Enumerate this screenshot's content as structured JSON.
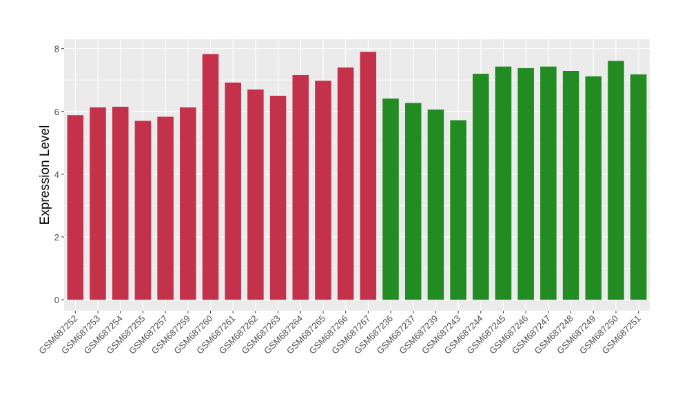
{
  "chart_data": {
    "type": "bar",
    "title": "",
    "xlabel": "",
    "ylabel": "Expression Level",
    "ylim": [
      -0.35,
      8.3
    ],
    "yticks": [
      0,
      2,
      4,
      6,
      8
    ],
    "grid": true,
    "legend": "none",
    "categories": [
      "GSM687252",
      "GSM687253",
      "GSM687254",
      "GSM687255",
      "GSM687257",
      "GSM687259",
      "GSM687260",
      "GSM687261",
      "GSM687262",
      "GSM687263",
      "GSM687264",
      "GSM687265",
      "GSM687266",
      "GSM687267",
      "GSM687236",
      "GSM687237",
      "GSM687239",
      "GSM687243",
      "GSM687244",
      "GSM687245",
      "GSM687246",
      "GSM687247",
      "GSM687248",
      "GSM687249",
      "GSM687250",
      "GSM687251"
    ],
    "values": [
      5.88,
      6.13,
      6.15,
      5.7,
      5.83,
      6.13,
      7.83,
      6.92,
      6.7,
      6.5,
      7.16,
      6.98,
      7.4,
      7.9,
      6.41,
      6.27,
      6.06,
      5.72,
      7.2,
      7.43,
      7.38,
      7.43,
      7.29,
      7.12,
      7.61,
      7.18
    ],
    "bar_colors": [
      "#c4314b",
      "#c4314b",
      "#c4314b",
      "#c4314b",
      "#c4314b",
      "#c4314b",
      "#c4314b",
      "#c4314b",
      "#c4314b",
      "#c4314b",
      "#c4314b",
      "#c4314b",
      "#c4314b",
      "#c4314b",
      "#228b22",
      "#228b22",
      "#228b22",
      "#228b22",
      "#228b22",
      "#228b22",
      "#228b22",
      "#228b22",
      "#228b22",
      "#228b22",
      "#228b22",
      "#228b22"
    ],
    "panel_background": "#ebebeb",
    "grid_color": "#ffffff"
  }
}
